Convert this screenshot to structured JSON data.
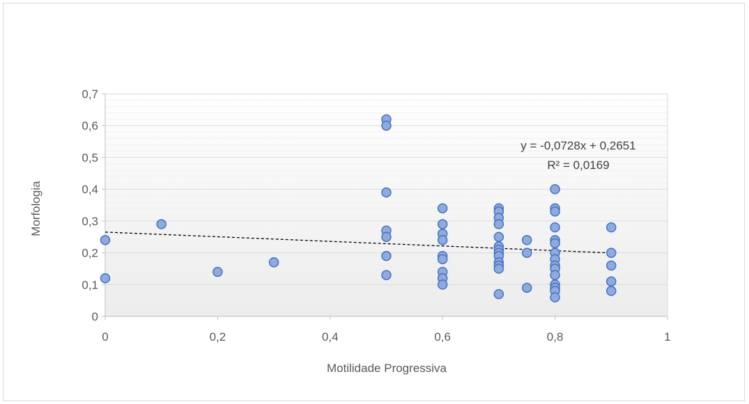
{
  "chart_data": {
    "type": "scatter",
    "title": "",
    "xlabel": "Motilidade Progressiva",
    "ylabel": "Morfologia",
    "xlim": [
      0,
      1
    ],
    "ylim": [
      0,
      0.7
    ],
    "x_ticks": [
      "0",
      "0,2",
      "0,4",
      "0,6",
      "0,8",
      "1"
    ],
    "y_ticks": [
      "0",
      "0,1",
      "0,2",
      "0,3",
      "0,4",
      "0,5",
      "0,6",
      "0,7"
    ],
    "grid": true,
    "legend": "none",
    "marker_fill": "#8faadc",
    "marker_stroke": "#4472c4",
    "trendline_color": "#000000",
    "points": [
      {
        "x": 0,
        "y": 0.24
      },
      {
        "x": 0,
        "y": 0.12
      },
      {
        "x": 0.1,
        "y": 0.29
      },
      {
        "x": 0.2,
        "y": 0.14
      },
      {
        "x": 0.3,
        "y": 0.17
      },
      {
        "x": 0.5,
        "y": 0.62
      },
      {
        "x": 0.5,
        "y": 0.6
      },
      {
        "x": 0.5,
        "y": 0.39
      },
      {
        "x": 0.5,
        "y": 0.27
      },
      {
        "x": 0.5,
        "y": 0.25
      },
      {
        "x": 0.5,
        "y": 0.19
      },
      {
        "x": 0.5,
        "y": 0.13
      },
      {
        "x": 0.6,
        "y": 0.34
      },
      {
        "x": 0.6,
        "y": 0.29
      },
      {
        "x": 0.6,
        "y": 0.26
      },
      {
        "x": 0.6,
        "y": 0.24
      },
      {
        "x": 0.6,
        "y": 0.19
      },
      {
        "x": 0.6,
        "y": 0.18
      },
      {
        "x": 0.6,
        "y": 0.14
      },
      {
        "x": 0.6,
        "y": 0.12
      },
      {
        "x": 0.6,
        "y": 0.1
      },
      {
        "x": 0.7,
        "y": 0.34
      },
      {
        "x": 0.7,
        "y": 0.33
      },
      {
        "x": 0.7,
        "y": 0.31
      },
      {
        "x": 0.7,
        "y": 0.29
      },
      {
        "x": 0.7,
        "y": 0.25
      },
      {
        "x": 0.7,
        "y": 0.22
      },
      {
        "x": 0.7,
        "y": 0.21
      },
      {
        "x": 0.7,
        "y": 0.2
      },
      {
        "x": 0.7,
        "y": 0.19
      },
      {
        "x": 0.7,
        "y": 0.17
      },
      {
        "x": 0.7,
        "y": 0.16
      },
      {
        "x": 0.7,
        "y": 0.15
      },
      {
        "x": 0.7,
        "y": 0.07
      },
      {
        "x": 0.75,
        "y": 0.24
      },
      {
        "x": 0.75,
        "y": 0.2
      },
      {
        "x": 0.75,
        "y": 0.09
      },
      {
        "x": 0.8,
        "y": 0.4
      },
      {
        "x": 0.8,
        "y": 0.34
      },
      {
        "x": 0.8,
        "y": 0.33
      },
      {
        "x": 0.8,
        "y": 0.28
      },
      {
        "x": 0.8,
        "y": 0.24
      },
      {
        "x": 0.8,
        "y": 0.23
      },
      {
        "x": 0.8,
        "y": 0.2
      },
      {
        "x": 0.8,
        "y": 0.18
      },
      {
        "x": 0.8,
        "y": 0.16
      },
      {
        "x": 0.8,
        "y": 0.15
      },
      {
        "x": 0.8,
        "y": 0.13
      },
      {
        "x": 0.8,
        "y": 0.1
      },
      {
        "x": 0.8,
        "y": 0.09
      },
      {
        "x": 0.8,
        "y": 0.08
      },
      {
        "x": 0.8,
        "y": 0.06
      },
      {
        "x": 0.9,
        "y": 0.28
      },
      {
        "x": 0.9,
        "y": 0.2
      },
      {
        "x": 0.9,
        "y": 0.16
      },
      {
        "x": 0.9,
        "y": 0.11
      },
      {
        "x": 0.9,
        "y": 0.08
      }
    ],
    "trendline": {
      "slope": -0.0728,
      "intercept": 0.2651,
      "x_range": [
        0,
        0.9
      ],
      "equation_label": "y = -0,0728x + 0,2651",
      "r2_label": "R² = 0,0169"
    }
  }
}
